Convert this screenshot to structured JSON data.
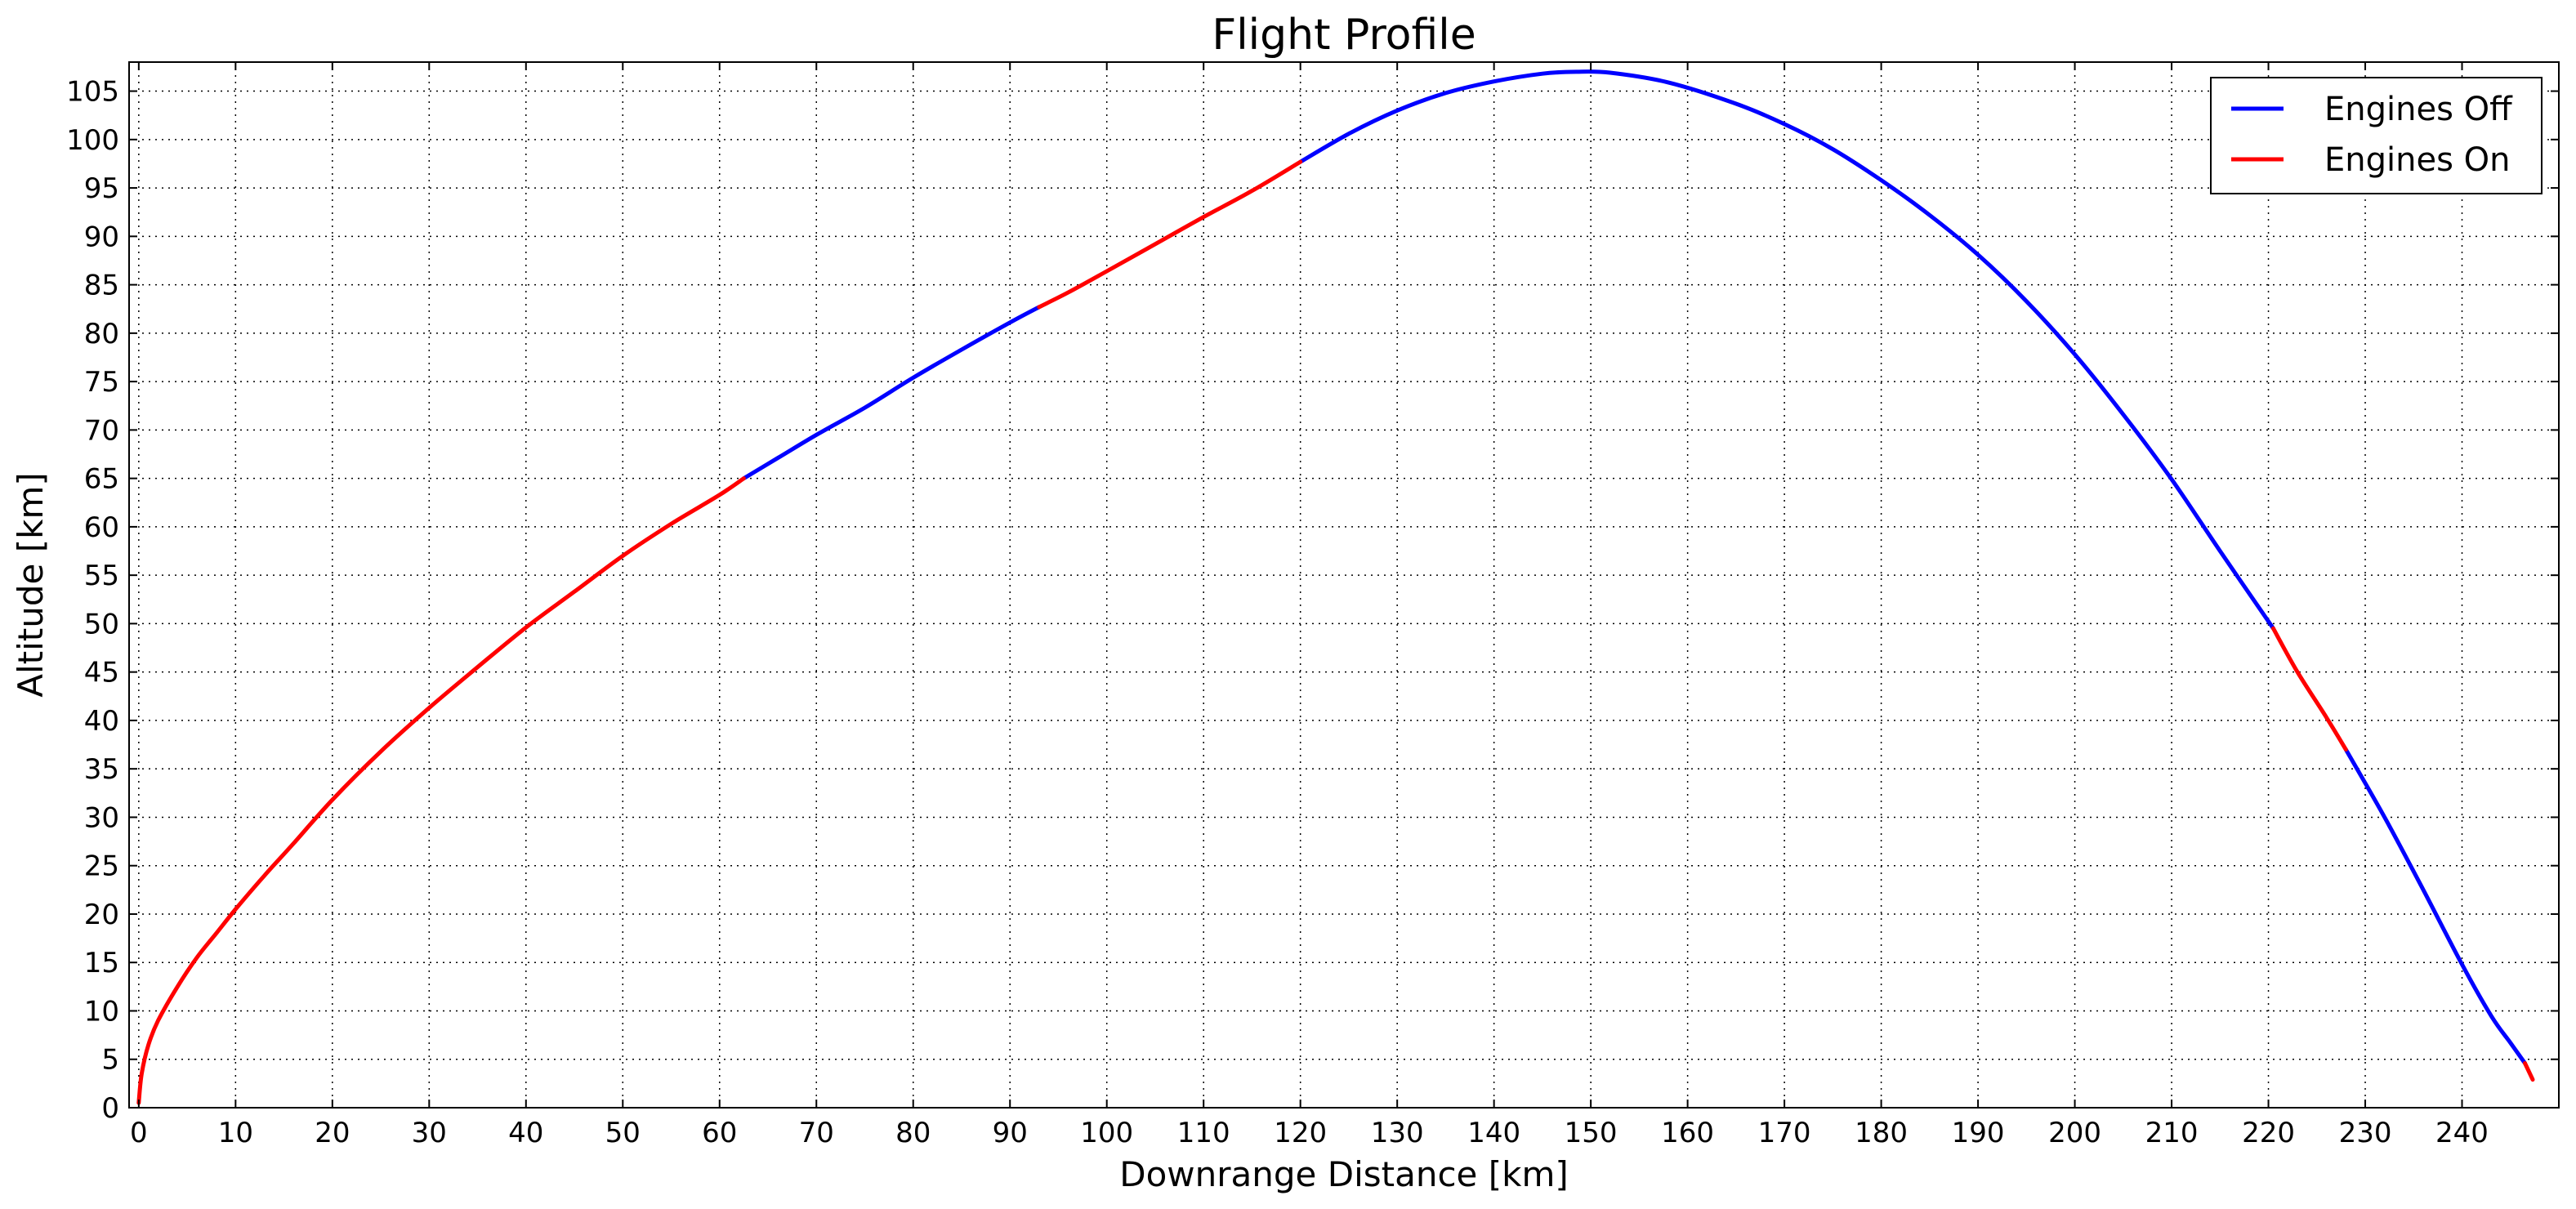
{
  "chart_data": {
    "type": "line",
    "title": "Flight Profile",
    "xlabel": "Downrange Distance [km]",
    "ylabel": "Altitude [km]",
    "xlim": [
      -1,
      250
    ],
    "ylim": [
      0,
      108
    ],
    "xticks": [
      0,
      10,
      20,
      30,
      40,
      50,
      60,
      70,
      80,
      90,
      100,
      110,
      120,
      130,
      140,
      150,
      160,
      170,
      180,
      190,
      200,
      210,
      220,
      230,
      240
    ],
    "yticks": [
      0,
      5,
      10,
      15,
      20,
      25,
      30,
      35,
      40,
      45,
      50,
      55,
      60,
      65,
      70,
      75,
      80,
      85,
      90,
      95,
      100,
      105
    ],
    "grid": true,
    "legend_position": "top-right",
    "series": [
      {
        "name": "Engines Off",
        "color": "#0000ff",
        "segments": [
          [
            [
              62.5,
              65.0
            ],
            [
              66,
              67.1
            ],
            [
              70,
              69.5
            ],
            [
              75,
              72.3
            ],
            [
              80,
              75.4
            ],
            [
              85,
              78.3
            ],
            [
              90,
              81.1
            ],
            [
              93,
              82.7
            ]
          ],
          [
            [
              120,
              97.7
            ],
            [
              125,
              100.6
            ],
            [
              130,
              103.0
            ],
            [
              135,
              104.8
            ],
            [
              140,
              106.0
            ],
            [
              145,
              106.8
            ],
            [
              148.5,
              107.0
            ],
            [
              152,
              106.9
            ],
            [
              158,
              105.9
            ],
            [
              165,
              103.7
            ],
            [
              170,
              101.6
            ],
            [
              175,
              99.0
            ],
            [
              180,
              95.8
            ],
            [
              185,
              92.2
            ],
            [
              190,
              88.1
            ],
            [
              195,
              83.3
            ],
            [
              200,
              77.8
            ],
            [
              205,
              71.6
            ],
            [
              210,
              64.9
            ],
            [
              215,
              57.5
            ],
            [
              220.5,
              49.5
            ]
          ],
          [
            [
              228,
              37.0
            ],
            [
              232,
              30.0
            ],
            [
              236,
              22.5
            ],
            [
              240,
              14.8
            ],
            [
              243,
              9.5
            ],
            [
              245,
              6.7
            ],
            [
              246.5,
              4.6
            ]
          ]
        ]
      },
      {
        "name": "Engines On",
        "color": "#ff0000",
        "segments": [
          [
            [
              0,
              0.5
            ],
            [
              0.3,
              3.5
            ],
            [
              1,
              6.5
            ],
            [
              2,
              9.0
            ],
            [
              4,
              12.5
            ],
            [
              6,
              15.5
            ],
            [
              8,
              18.0
            ],
            [
              10,
              20.5
            ],
            [
              13,
              24.0
            ],
            [
              16,
              27.3
            ],
            [
              20,
              31.8
            ],
            [
              25,
              36.8
            ],
            [
              30,
              41.3
            ],
            [
              35,
              45.5
            ],
            [
              40,
              49.6
            ],
            [
              45,
              53.3
            ],
            [
              50,
              57.0
            ],
            [
              55,
              60.3
            ],
            [
              60,
              63.3
            ],
            [
              62.5,
              65.0
            ]
          ],
          [
            [
              93,
              82.7
            ],
            [
              96,
              84.2
            ],
            [
              100,
              86.4
            ],
            [
              105,
              89.2
            ],
            [
              110,
              92.0
            ],
            [
              115,
              94.7
            ],
            [
              120,
              97.7
            ]
          ],
          [
            [
              220.5,
              49.5
            ],
            [
              223,
              45.0
            ],
            [
              226,
              40.3
            ],
            [
              228,
              37.0
            ]
          ],
          [
            [
              246.5,
              4.6
            ],
            [
              247.3,
              2.9
            ]
          ]
        ]
      }
    ]
  },
  "legend": {
    "items": [
      {
        "label": "Engines Off",
        "color": "#0000ff"
      },
      {
        "label": "Engines On",
        "color": "#ff0000"
      }
    ]
  }
}
